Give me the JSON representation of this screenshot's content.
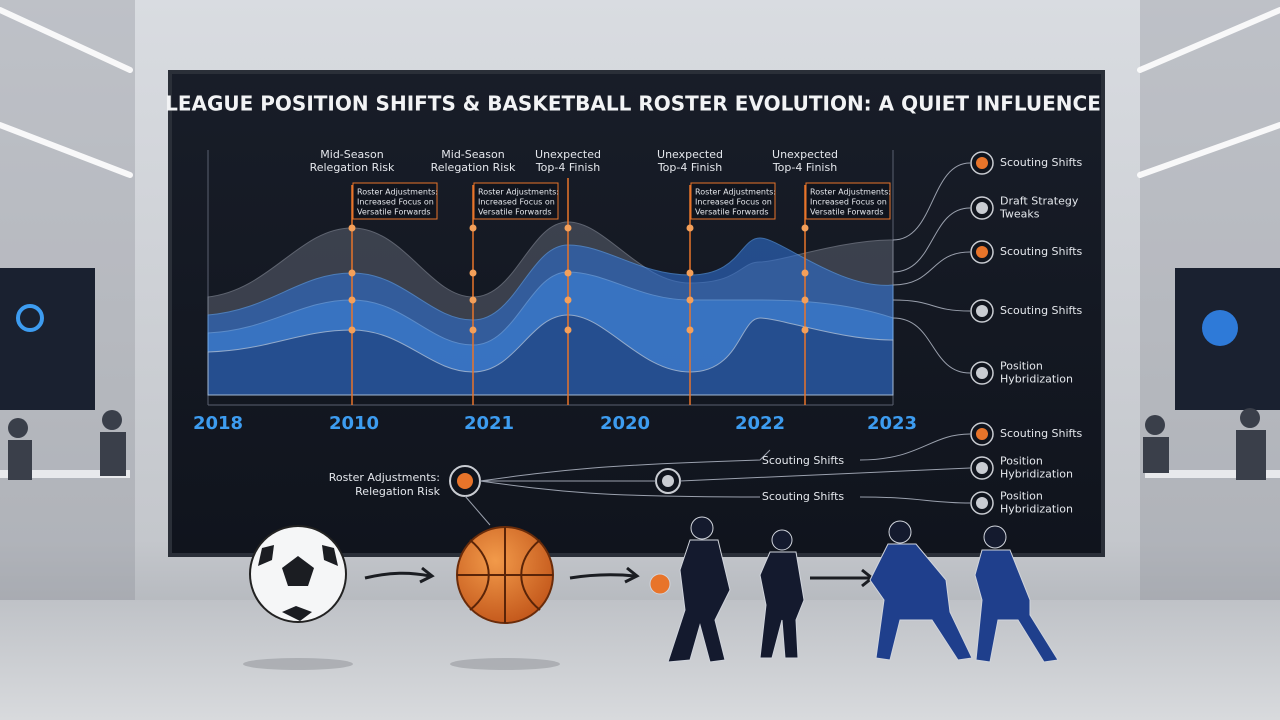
{
  "header": {
    "title": "LEAGUE POSITION SHIFTS & BASKETBALL ROSTER EVOLUTION: A QUIET INFLUENCE"
  },
  "timeline": {
    "years": [
      "2018",
      "2010",
      "2021",
      "2020",
      "2022",
      "2023"
    ]
  },
  "events": [
    {
      "label": [
        "Mid-Season",
        "Relegation Risk"
      ],
      "note": [
        "Roster Adjustments:",
        "Increased Focus on",
        "Versatile Forwards"
      ]
    },
    {
      "label": [
        "Mid-Season",
        "Relegation Risk"
      ],
      "note": [
        "Roster Adjustments:",
        "Increased Focus on",
        "Versatile Forwards"
      ]
    },
    {
      "label": [
        "Unexpected",
        "Top-4 Finish"
      ]
    },
    {
      "label": [
        "Unexpected",
        "Top-4 Finish"
      ],
      "note": [
        "Roster Adjustments:",
        "Increased Focus on",
        "Versatile Forwards"
      ]
    },
    {
      "label": [
        "Unexpected",
        "Top-4 Finish"
      ],
      "note": [
        "Roster Adjustments:",
        "Increased Focus on",
        "Versatile Forwards"
      ]
    }
  ],
  "legend": [
    {
      "label": [
        "Scouting Shifts"
      ],
      "color": "#e8742a"
    },
    {
      "label": [
        "Draft Strategy",
        "Tweaks"
      ],
      "color": "#c9ccd2"
    },
    {
      "label": [
        "Scouting Shifts"
      ],
      "color": "#e8742a"
    },
    {
      "label": [
        "Scouting Shifts"
      ],
      "color": "#c9ccd2"
    },
    {
      "label": [
        "Position",
        "Hybridization"
      ],
      "color": "#c9ccd2"
    }
  ],
  "flow": {
    "source": [
      "Roster Adjustments:",
      "Relegation Risk"
    ],
    "links": [
      "Scouting Shifts",
      "Scouting Shifts"
    ],
    "outcomes": [
      {
        "label": [
          "Scouting Shifts"
        ],
        "color": "#e8742a"
      },
      {
        "label": [
          "Position",
          "Hybridization"
        ],
        "color": "#c9ccd2"
      },
      {
        "label": [
          "Position",
          "Hybridization"
        ],
        "color": "#c9ccd2"
      }
    ]
  }
}
